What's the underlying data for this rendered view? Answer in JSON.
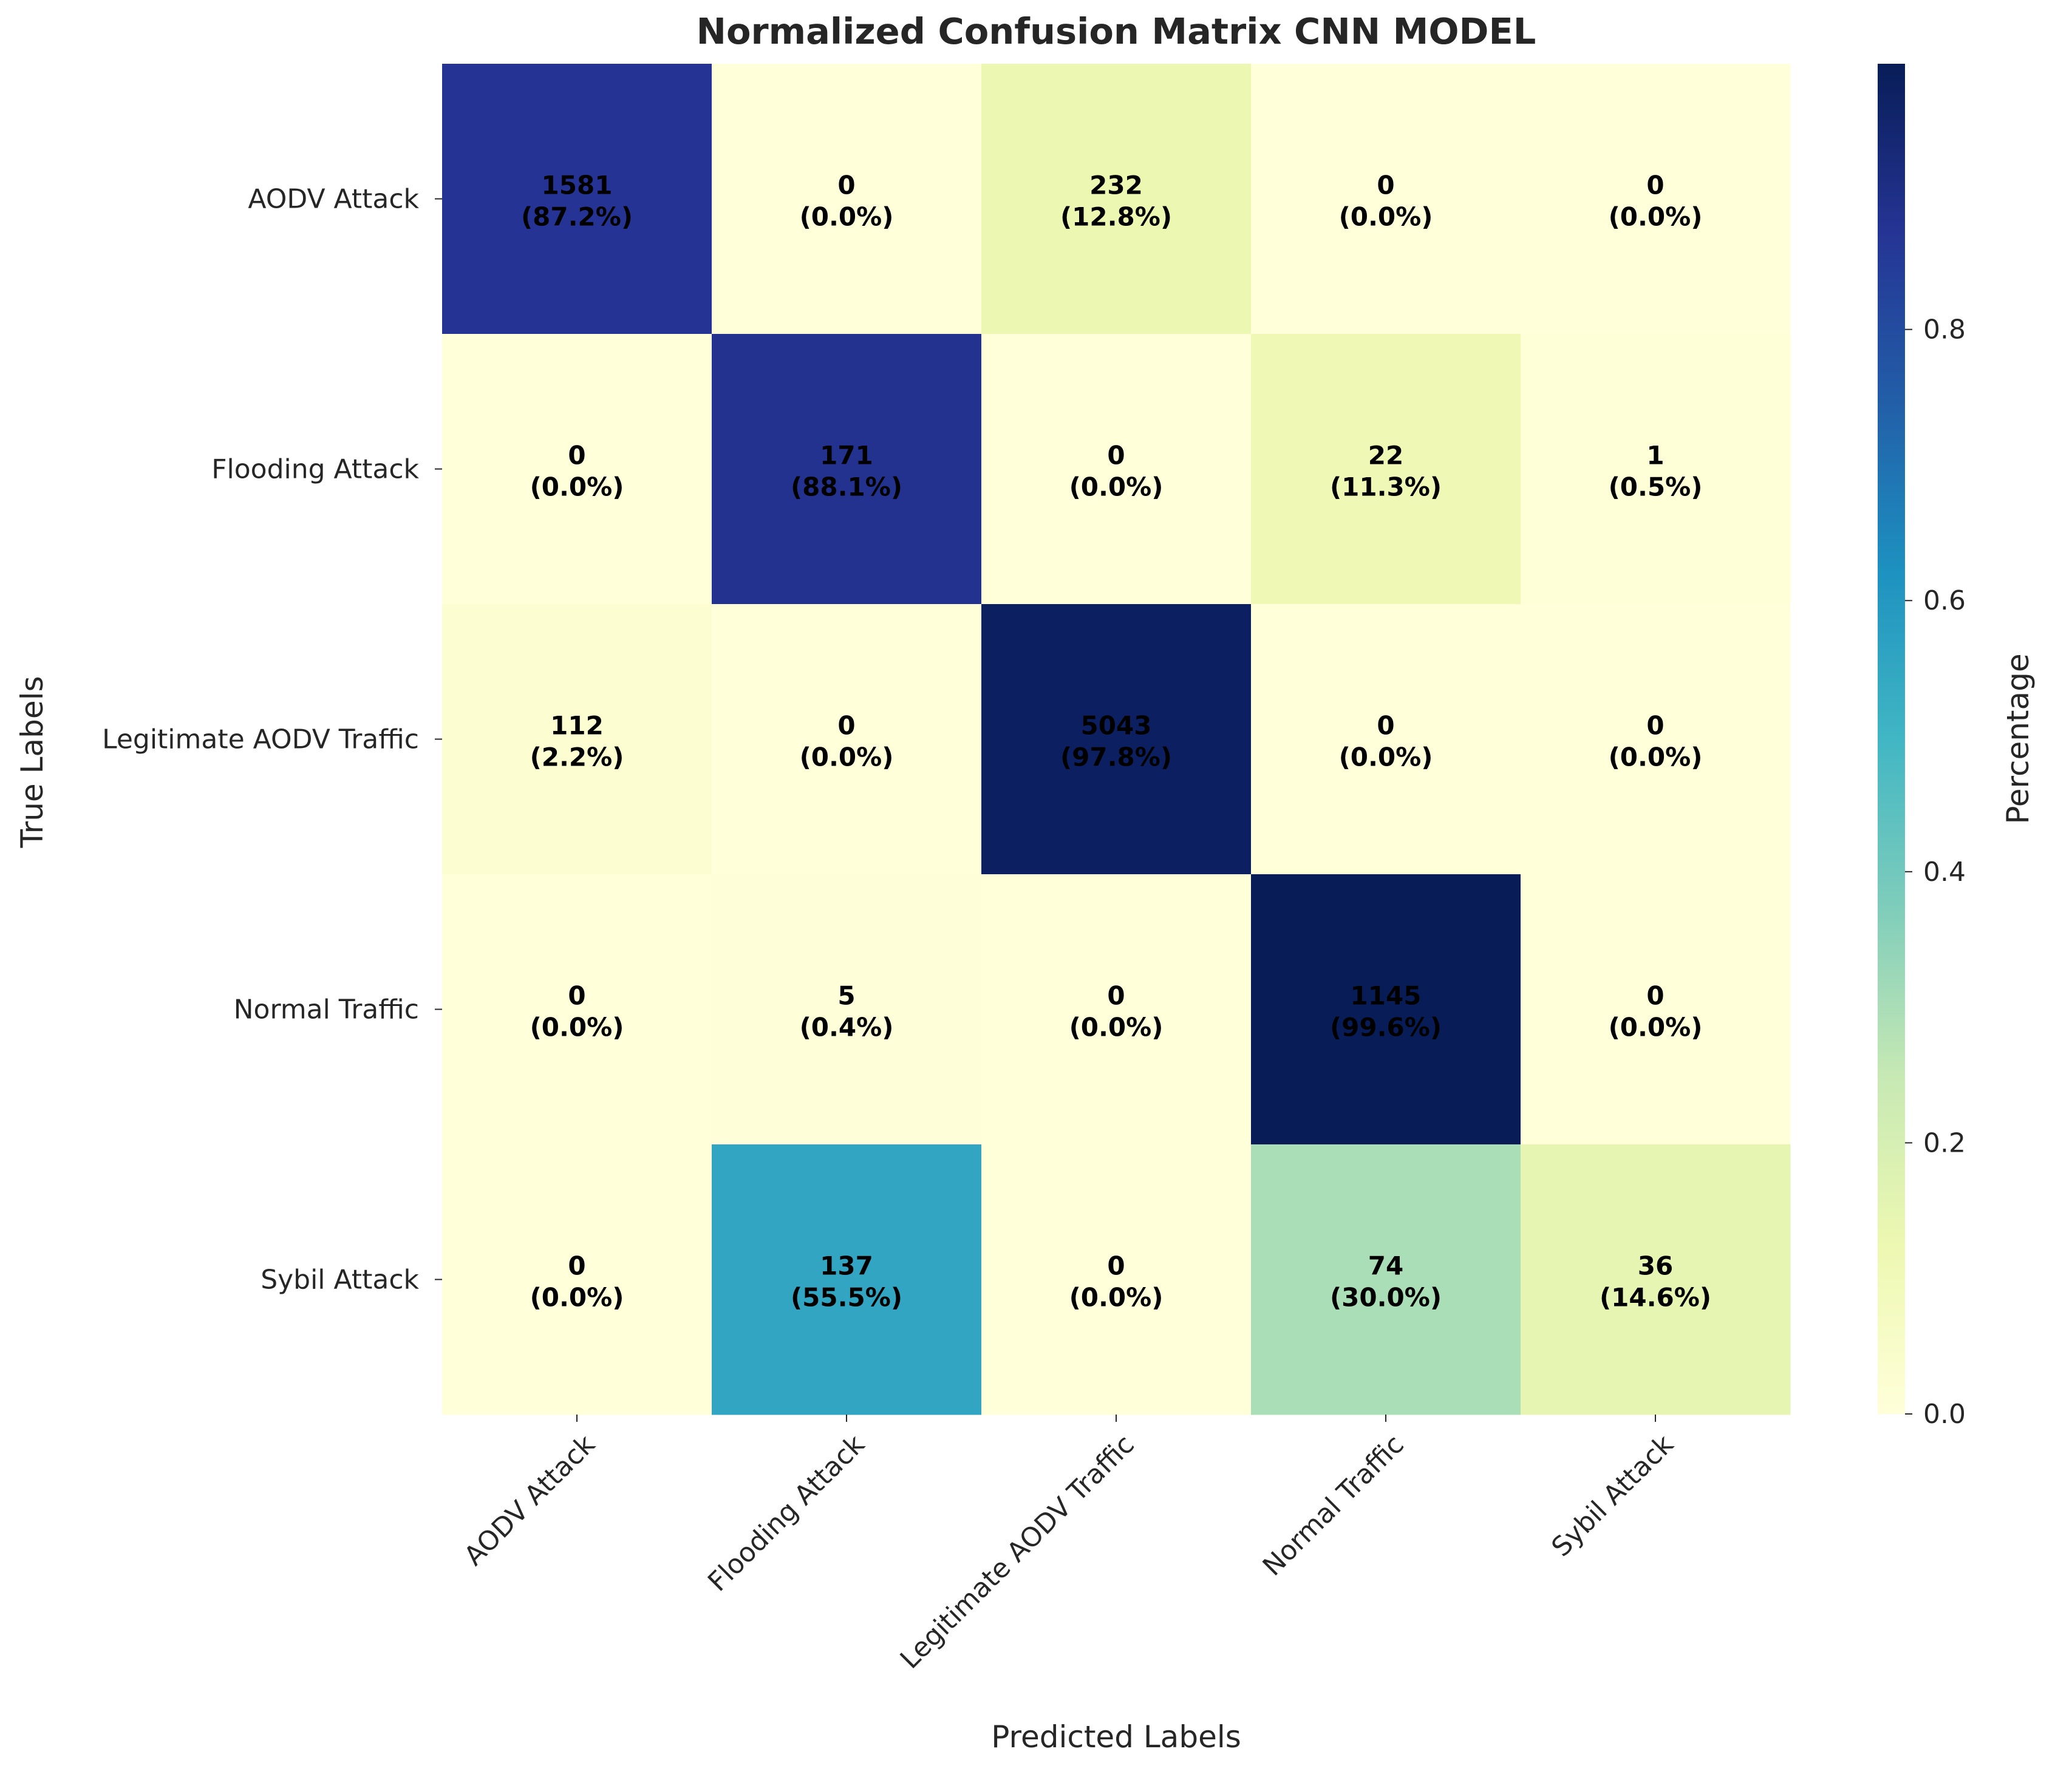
{
  "chart_data": {
    "type": "heatmap",
    "title": "Normalized Confusion Matrix CNN MODEL",
    "xlabel": "Predicted Labels",
    "ylabel": "True Labels",
    "row_labels": [
      "AODV Attack",
      "Flooding Attack",
      "Legitimate AODV Traffic",
      "Normal Traffic",
      "Sybil Attack"
    ],
    "col_labels": [
      "AODV Attack",
      "Flooding Attack",
      "Legitimate AODV Traffic",
      "Normal Traffic",
      "Sybil Attack"
    ],
    "counts": [
      [
        1581,
        0,
        232,
        0,
        0
      ],
      [
        0,
        171,
        0,
        22,
        1
      ],
      [
        112,
        0,
        5043,
        0,
        0
      ],
      [
        0,
        5,
        0,
        1145,
        0
      ],
      [
        0,
        137,
        0,
        74,
        36
      ]
    ],
    "percent_labels": [
      [
        "(87.2%)",
        "(0.0%)",
        "(12.8%)",
        "(0.0%)",
        "(0.0%)"
      ],
      [
        "(0.0%)",
        "(88.1%)",
        "(0.0%)",
        "(11.3%)",
        "(0.5%)"
      ],
      [
        "(2.2%)",
        "(0.0%)",
        "(97.8%)",
        "(0.0%)",
        "(0.0%)"
      ],
      [
        "(0.0%)",
        "(0.4%)",
        "(0.0%)",
        "(99.6%)",
        "(0.0%)"
      ],
      [
        "(0.0%)",
        "(55.5%)",
        "(0.0%)",
        "(30.0%)",
        "(14.6%)"
      ]
    ],
    "normalized": [
      [
        0.872,
        0.0,
        0.128,
        0.0,
        0.0
      ],
      [
        0.0,
        0.881,
        0.0,
        0.113,
        0.005
      ],
      [
        0.022,
        0.0,
        0.978,
        0.0,
        0.0
      ],
      [
        0.0,
        0.004,
        0.0,
        0.996,
        0.0
      ],
      [
        0.0,
        0.555,
        0.0,
        0.3,
        0.146
      ]
    ],
    "colorbar": {
      "label": "Percentage",
      "range": [
        0,
        0.996
      ],
      "ticks": [
        "0.0",
        "0.2",
        "0.4",
        "0.6",
        "0.8"
      ],
      "tick_values": [
        0,
        0.2,
        0.4,
        0.6,
        0.8
      ],
      "colormap": "YlGnBu",
      "colormap_stops": [
        "#ffffd9",
        "#edf8b1",
        "#c7e9b4",
        "#7fcdbb",
        "#41b6c4",
        "#1d91c0",
        "#225ea8",
        "#253494",
        "#081d58"
      ]
    }
  }
}
